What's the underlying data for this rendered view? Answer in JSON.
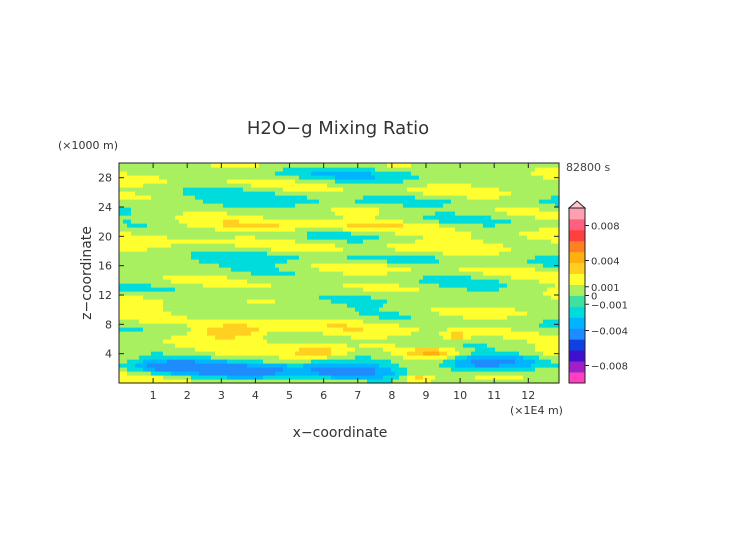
{
  "chart_data": {
    "type": "heatmap",
    "title": "H2O−g Mixing Ratio",
    "xlabel": "x−coordinate",
    "ylabel": "z−coordinate",
    "x_unit": "(×1E4 m)",
    "y_unit": "(×1000 m)",
    "time_label": "82800 s",
    "xlim": [
      0,
      12.9
    ],
    "ylim": [
      0,
      30
    ],
    "x_ticks": [
      1,
      2,
      3,
      4,
      5,
      6,
      7,
      8,
      9,
      10,
      11,
      12
    ],
    "y_ticks": [
      4,
      8,
      12,
      16,
      20,
      24,
      28
    ],
    "colorbar": {
      "tick_labels": [
        "0.008",
        "0.004",
        "0.001",
        "0",
        "−0.001",
        "−0.004",
        "−0.008"
      ],
      "tick_values": [
        0.008,
        0.004,
        0.001,
        0,
        -0.001,
        -0.004,
        -0.008
      ],
      "range": [
        -0.01,
        0.01
      ],
      "colors": [
        "#ff40c0",
        "#a020c8",
        "#4010d0",
        "#1040e0",
        "#1e8cff",
        "#00b4ff",
        "#00dcdc",
        "#40e0a0",
        "#a8f060",
        "#ffff30",
        "#ffd020",
        "#ffb010",
        "#ff8020",
        "#ff4040",
        "#ff6080",
        "#ffa0b0"
      ]
    },
    "field_levels": [
      {
        "value": -0.0012,
        "color": "#1e8cff"
      },
      {
        "value": -0.0008,
        "color": "#00b4ff"
      },
      {
        "value": -0.0004,
        "color": "#00dcdc"
      },
      {
        "value": 0.0,
        "color": "#a8f060"
      },
      {
        "value": 0.0004,
        "color": "#ffff30"
      },
      {
        "value": 0.0008,
        "color": "#ffd020"
      },
      {
        "value": 0.0012,
        "color": "#ffb010"
      },
      {
        "value": 0.0016,
        "color": "#ff8020"
      }
    ]
  }
}
